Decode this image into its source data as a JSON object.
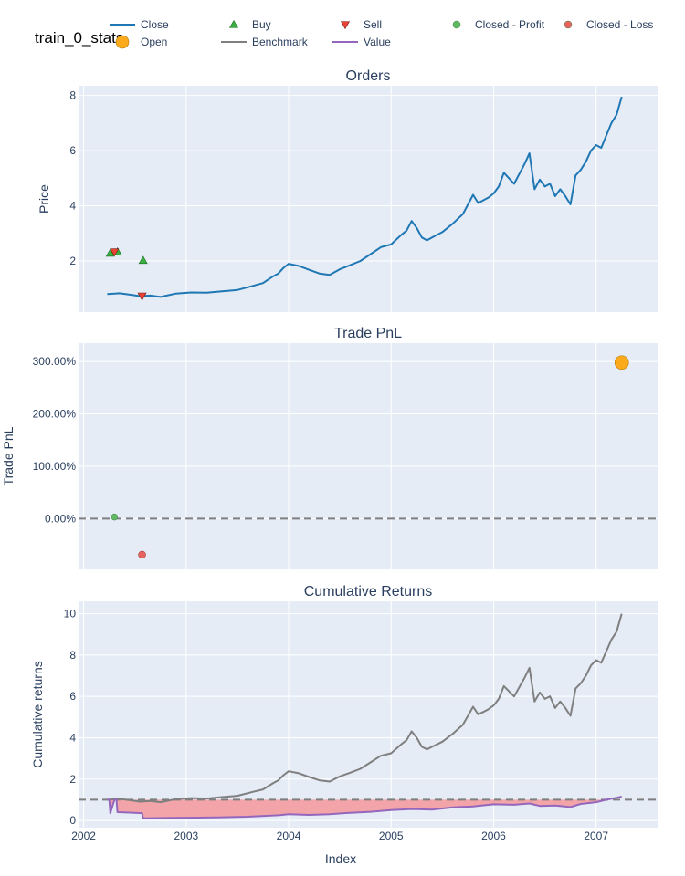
{
  "title": "train_0_stats",
  "colors": {
    "close": "#1f77b4",
    "buy": "#37b13f",
    "sell": "#ea4335",
    "closed_profit": "#5fb962",
    "closed_loss": "#e8625f",
    "open": "#fbaa1c",
    "benchmark": "#7f7f7f",
    "value": "#9467bd",
    "fill_loss": "#f2a4a8",
    "plot_bg": "#e5ecf6",
    "grid": "#ffffff",
    "text": "#2a3f5f"
  },
  "legend": {
    "placement": "top",
    "items": [
      {
        "key": "close",
        "label": "Close",
        "symbol": "line"
      },
      {
        "key": "buy",
        "label": "Buy",
        "symbol": "triangle-up"
      },
      {
        "key": "sell",
        "label": "Sell",
        "symbol": "triangle-down"
      },
      {
        "key": "closed_profit",
        "label": "Closed - Profit",
        "symbol": "circle"
      },
      {
        "key": "closed_loss",
        "label": "Closed - Loss",
        "symbol": "circle"
      },
      {
        "key": "open",
        "label": "Open",
        "symbol": "circle-big"
      },
      {
        "key": "benchmark",
        "label": "Benchmark",
        "symbol": "line"
      },
      {
        "key": "value",
        "label": "Value",
        "symbol": "line"
      }
    ]
  },
  "chart_data": [
    {
      "type": "line",
      "title": "Orders",
      "xlabel": "",
      "ylabel": "Price",
      "xlim": [
        2001.95,
        2007.6
      ],
      "ylim": [
        0.15,
        8.35
      ],
      "yticks": [
        2,
        4,
        6,
        8
      ],
      "grid": true,
      "series": [
        {
          "name": "Close",
          "x": [
            2002.23,
            2002.35,
            2002.45,
            2002.55,
            2002.65,
            2002.75,
            2002.9,
            2003.05,
            2003.2,
            2003.35,
            2003.5,
            2003.65,
            2003.75,
            2003.85,
            2003.9,
            2003.95,
            2004.0,
            2004.1,
            2004.2,
            2004.3,
            2004.4,
            2004.5,
            2004.6,
            2004.7,
            2004.8,
            2004.9,
            2005.0,
            2005.1,
            2005.15,
            2005.2,
            2005.25,
            2005.3,
            2005.35,
            2005.4,
            2005.5,
            2005.6,
            2005.7,
            2005.8,
            2005.85,
            2005.9,
            2005.95,
            2006.0,
            2006.05,
            2006.1,
            2006.2,
            2006.3,
            2006.35,
            2006.4,
            2006.45,
            2006.5,
            2006.55,
            2006.6,
            2006.65,
            2006.7,
            2006.75,
            2006.8,
            2006.85,
            2006.9,
            2006.95,
            2007.0,
            2007.05,
            2007.1,
            2007.15,
            2007.2,
            2007.25
          ],
          "y": [
            0.8,
            0.83,
            0.78,
            0.73,
            0.75,
            0.7,
            0.82,
            0.86,
            0.85,
            0.9,
            0.95,
            1.1,
            1.2,
            1.45,
            1.55,
            1.75,
            1.9,
            1.82,
            1.68,
            1.55,
            1.5,
            1.7,
            1.85,
            2.0,
            2.25,
            2.5,
            2.6,
            2.95,
            3.1,
            3.45,
            3.2,
            2.85,
            2.75,
            2.85,
            3.05,
            3.35,
            3.7,
            4.4,
            4.1,
            4.2,
            4.3,
            4.45,
            4.7,
            5.2,
            4.8,
            5.5,
            5.9,
            4.6,
            4.95,
            4.7,
            4.8,
            4.35,
            4.6,
            4.35,
            4.05,
            5.1,
            5.3,
            5.6,
            6.0,
            6.2,
            6.1,
            6.55,
            7.0,
            7.3,
            7.95
          ]
        },
        {
          "name": "Buy",
          "x": [
            2002.26,
            2002.33,
            2002.58
          ],
          "y": [
            2.28,
            2.33,
            2.02
          ]
        },
        {
          "name": "Sell",
          "x": [
            2002.3,
            2002.57
          ],
          "y": [
            2.33,
            0.73
          ]
        }
      ]
    },
    {
      "type": "scatter",
      "title": "Trade PnL",
      "xlabel": "",
      "ylabel": "Trade PnL",
      "xlim": [
        2001.95,
        2007.6
      ],
      "ylim": [
        -0.97,
        3.35
      ],
      "yticks": [
        0,
        1,
        2,
        3
      ],
      "ytick_labels": [
        "0.00%",
        "100.00%",
        "200.00%",
        "300.00%"
      ],
      "grid": true,
      "zero_line": 0,
      "series": [
        {
          "name": "Closed - Profit",
          "x": [
            2002.3
          ],
          "y": [
            0.03
          ]
        },
        {
          "name": "Closed - Loss",
          "x": [
            2002.57
          ],
          "y": [
            -0.69
          ]
        },
        {
          "name": "Open",
          "x": [
            2007.25
          ],
          "y": [
            2.98
          ]
        }
      ]
    },
    {
      "type": "area",
      "title": "Cumulative Returns",
      "xlabel": "Index",
      "ylabel": "Cumulative returns",
      "xlim": [
        2001.95,
        2007.6
      ],
      "ylim": [
        -0.35,
        10.6
      ],
      "yticks": [
        0,
        2,
        4,
        6,
        8,
        10
      ],
      "xticks": [
        2002,
        2003,
        2004,
        2005,
        2006,
        2007
      ],
      "xtick_labels": [
        "2002",
        "2003",
        "2004",
        "2005",
        "2006",
        "2007"
      ],
      "grid": true,
      "baseline": 1,
      "series": [
        {
          "name": "Benchmark",
          "x": [
            2002.23,
            2002.35,
            2002.45,
            2002.55,
            2002.65,
            2002.75,
            2002.9,
            2003.05,
            2003.2,
            2003.35,
            2003.5,
            2003.65,
            2003.75,
            2003.85,
            2003.9,
            2003.95,
            2004.0,
            2004.1,
            2004.2,
            2004.3,
            2004.4,
            2004.5,
            2004.6,
            2004.7,
            2004.8,
            2004.9,
            2005.0,
            2005.1,
            2005.15,
            2005.2,
            2005.25,
            2005.3,
            2005.35,
            2005.4,
            2005.5,
            2005.6,
            2005.7,
            2005.8,
            2005.85,
            2005.9,
            2005.95,
            2006.0,
            2006.05,
            2006.1,
            2006.2,
            2006.3,
            2006.35,
            2006.4,
            2006.45,
            2006.5,
            2006.55,
            2006.6,
            2006.65,
            2006.7,
            2006.75,
            2006.8,
            2006.85,
            2006.9,
            2006.95,
            2007.0,
            2007.05,
            2007.1,
            2007.15,
            2007.2,
            2007.25
          ],
          "y": [
            1.0,
            1.04,
            0.98,
            0.91,
            0.94,
            0.88,
            1.03,
            1.08,
            1.06,
            1.13,
            1.19,
            1.38,
            1.5,
            1.81,
            1.94,
            2.19,
            2.38,
            2.28,
            2.1,
            1.94,
            1.88,
            2.13,
            2.31,
            2.5,
            2.81,
            3.13,
            3.25,
            3.69,
            3.88,
            4.31,
            4.0,
            3.56,
            3.44,
            3.56,
            3.81,
            4.19,
            4.63,
            5.5,
            5.13,
            5.25,
            5.38,
            5.56,
            5.88,
            6.5,
            6.0,
            6.88,
            7.38,
            5.75,
            6.19,
            5.88,
            6.0,
            5.44,
            5.75,
            5.44,
            5.06,
            6.38,
            6.63,
            7.0,
            7.5,
            7.75,
            7.63,
            8.19,
            8.75,
            9.13,
            10.0
          ]
        },
        {
          "name": "Value",
          "x": [
            2002.23,
            2002.25,
            2002.26,
            2002.3,
            2002.32,
            2002.33,
            2002.45,
            2002.57,
            2002.58,
            2002.8,
            2003.0,
            2003.3,
            2003.6,
            2003.9,
            2004.0,
            2004.2,
            2004.4,
            2004.6,
            2004.8,
            2005.0,
            2005.2,
            2005.4,
            2005.6,
            2005.8,
            2006.0,
            2006.2,
            2006.35,
            2006.45,
            2006.6,
            2006.75,
            2006.85,
            2007.0,
            2007.1,
            2007.2,
            2007.25
          ],
          "y": [
            1.0,
            1.0,
            0.35,
            1.0,
            1.03,
            0.4,
            0.38,
            0.35,
            0.1,
            0.12,
            0.13,
            0.15,
            0.18,
            0.25,
            0.3,
            0.27,
            0.3,
            0.37,
            0.42,
            0.5,
            0.55,
            0.52,
            0.63,
            0.68,
            0.78,
            0.76,
            0.82,
            0.7,
            0.72,
            0.65,
            0.8,
            0.88,
            1.0,
            1.1,
            1.15
          ]
        }
      ]
    }
  ]
}
